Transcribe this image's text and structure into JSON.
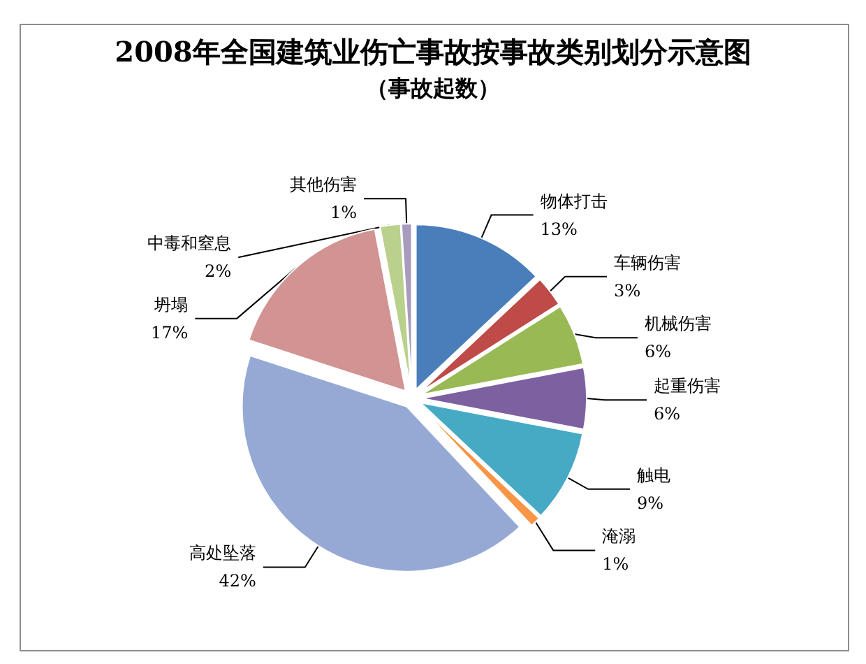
{
  "chart_data": {
    "type": "pie",
    "title": "2008年全国建筑业伤亡事故按事故类别划分示意图",
    "subtitle": "（事故起数）",
    "categories": [
      "物体打击",
      "车辆伤害",
      "机械伤害",
      "起重伤害",
      "触电",
      "淹溺",
      "高处坠落",
      "坍塌",
      "中毒和窒息",
      "其他伤害"
    ],
    "values": [
      13,
      3,
      6,
      6,
      9,
      1,
      42,
      17,
      2,
      1
    ],
    "value_labels": [
      "13%",
      "3%",
      "6%",
      "6%",
      "9%",
      "1%",
      "42%",
      "17%",
      "2%",
      "1%"
    ],
    "colors": [
      "#4a7ebb",
      "#be4b48",
      "#98b954",
      "#7d60a0",
      "#46aac5",
      "#f79646",
      "#95a9d4",
      "#d29393",
      "#b9d18c",
      "#a99bbd"
    ],
    "legend": false
  }
}
